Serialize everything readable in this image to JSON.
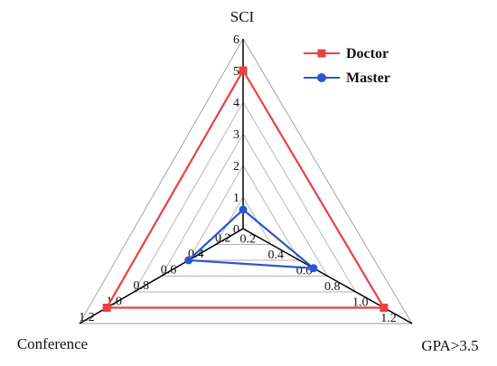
{
  "chart_data": {
    "type": "radar",
    "axes": [
      {
        "name": "SCI",
        "range": [
          0,
          6
        ],
        "ticks": [
          "0",
          "1",
          "2",
          "3",
          "4",
          "5",
          "6"
        ],
        "tick_values": [
          0,
          1,
          2,
          3,
          4,
          5,
          6
        ]
      },
      {
        "name": "GPA>3.5",
        "range": [
          0,
          1.2
        ],
        "ticks": [
          "0.2",
          "0.4",
          "0.6",
          "0.8",
          "1.0",
          "1.2"
        ],
        "tick_values": [
          0.2,
          0.4,
          0.6,
          0.8,
          1.0,
          1.2
        ]
      },
      {
        "name": "Conference",
        "range": [
          0,
          1.2
        ],
        "ticks": [
          "0.2",
          "0.4",
          "0.6",
          "0.8",
          "1.0",
          "1.2"
        ],
        "tick_values": [
          0.2,
          0.4,
          0.6,
          0.8,
          1.0,
          1.2
        ]
      }
    ],
    "series": [
      {
        "name": "Doctor",
        "values": [
          5,
          1.0,
          1.0
        ],
        "color": "#e8423f",
        "marker": "square"
      },
      {
        "name": "Master",
        "values": [
          0.6,
          0.5,
          0.4
        ],
        "color": "#2a55d6",
        "marker": "circle"
      }
    ],
    "legend_position": "top-right",
    "grid": true
  }
}
